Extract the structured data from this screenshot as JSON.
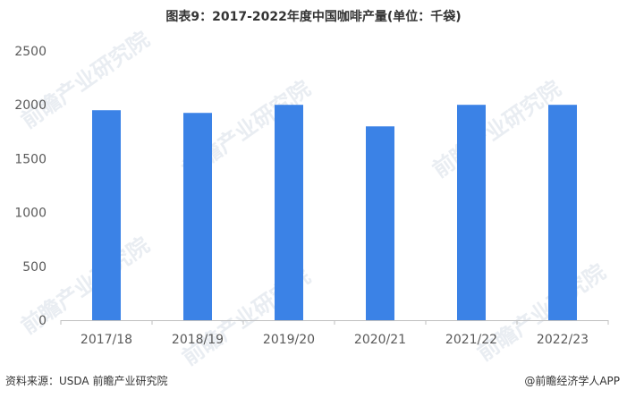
{
  "title": "图表9：2017-2022年度中国咖啡产量(单位：千袋)",
  "source": "资料来源：USDA 前瞻产业研究院",
  "app_credit": "@前瞻经济学人APP",
  "watermark_text": "前瞻产业研究院",
  "colors": {
    "bar": "#3b82e6",
    "axis": "#bfbfbf",
    "tick_text": "#595959"
  },
  "chart_data": {
    "type": "bar",
    "categories": [
      "2017/18",
      "2018/19",
      "2019/20",
      "2020/21",
      "2021/22",
      "2022/23"
    ],
    "values": [
      1950,
      1925,
      2000,
      1800,
      2000,
      2000
    ],
    "yticks": [
      0,
      500,
      1000,
      1500,
      2000,
      2500
    ],
    "ylim": [
      0,
      2500
    ],
    "grid": false,
    "legend": "none"
  }
}
